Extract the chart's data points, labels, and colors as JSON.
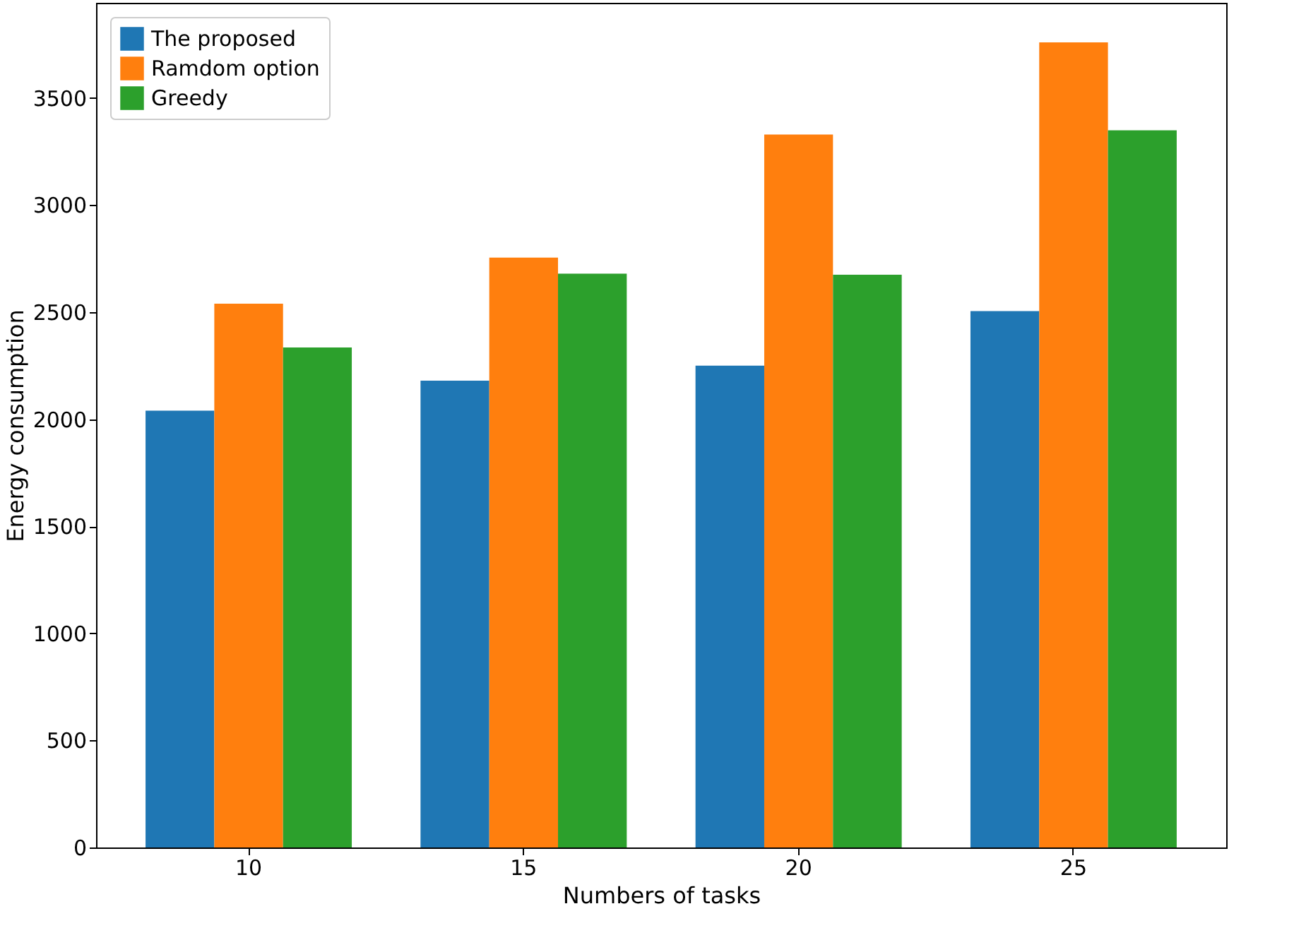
{
  "chart_data": {
    "type": "bar",
    "xlabel": "Numbers of tasks",
    "ylabel": "Energy consumption",
    "categories": [
      "10",
      "15",
      "20",
      "25"
    ],
    "series": [
      {
        "name": "The proposed",
        "color": "#1f77b4",
        "values": [
          2040,
          2180,
          2250,
          2505
        ]
      },
      {
        "name": "Ramdom option",
        "color": "#ff7f0e",
        "values": [
          2540,
          2755,
          3330,
          3760
        ]
      },
      {
        "name": "Greedy",
        "color": "#2ca02c",
        "values": [
          2335,
          2680,
          2675,
          3350
        ]
      }
    ],
    "ylim": [
      0,
      3945
    ],
    "yticks": [
      0,
      500,
      1000,
      1500,
      2000,
      2500,
      3000,
      3500
    ],
    "grid": false,
    "legend": "top left"
  }
}
